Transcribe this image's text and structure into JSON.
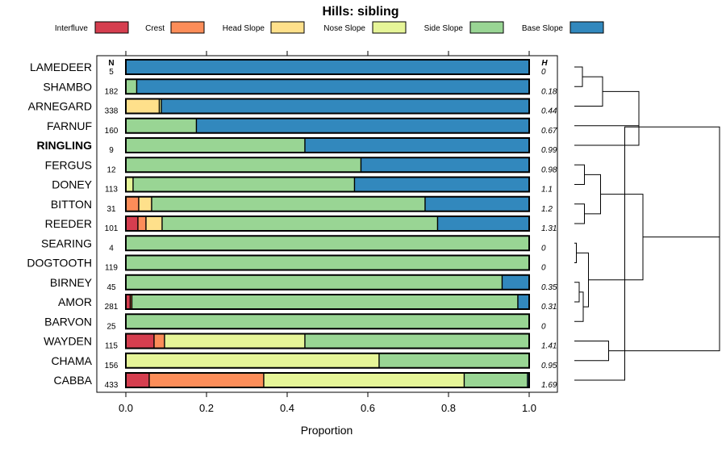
{
  "chart_data": {
    "type": "bar",
    "orientation": "horizontal",
    "stacked": true,
    "title": "Hills: sibling",
    "xlabel": "Proportion",
    "ylabel": "",
    "xlim": [
      0,
      1
    ],
    "xticks": [
      0.0,
      0.2,
      0.4,
      0.6,
      0.8,
      1.0
    ],
    "xtick_labels": [
      "0.0",
      "0.2",
      "0.4",
      "0.6",
      "0.8",
      "1.0"
    ],
    "n_header": "N",
    "h_header": "H",
    "legend": [
      {
        "name": "Interfluve",
        "color": "#D53E4F"
      },
      {
        "name": "Crest",
        "color": "#FC8D59"
      },
      {
        "name": "Head Slope",
        "color": "#FEE08B"
      },
      {
        "name": "Nose Slope",
        "color": "#E6F598"
      },
      {
        "name": "Side Slope",
        "color": "#99D594"
      },
      {
        "name": "Base Slope",
        "color": "#3288BD"
      }
    ],
    "rows": [
      {
        "name": "LAMEDEER",
        "n": "5",
        "h": "0",
        "bold": false,
        "values": [
          0,
          0,
          0,
          0,
          0,
          1.0
        ]
      },
      {
        "name": "SHAMBO",
        "n": "182",
        "h": "0.18",
        "bold": false,
        "values": [
          0,
          0,
          0,
          0,
          0.027,
          0.973
        ]
      },
      {
        "name": "ARNEGARD",
        "n": "338",
        "h": "0.44",
        "bold": false,
        "values": [
          0,
          0,
          0.083,
          0.005,
          0,
          0.912
        ]
      },
      {
        "name": "FARNUF",
        "n": "160",
        "h": "0.67",
        "bold": false,
        "values": [
          0,
          0,
          0,
          0,
          0.175,
          0.825
        ]
      },
      {
        "name": "RINGLING",
        "n": "9",
        "h": "0.99",
        "bold": true,
        "values": [
          0,
          0,
          0,
          0,
          0.444,
          0.556
        ]
      },
      {
        "name": "FERGUS",
        "n": "12",
        "h": "0.98",
        "bold": false,
        "values": [
          0,
          0,
          0,
          0,
          0.583,
          0.417
        ]
      },
      {
        "name": "DONEY",
        "n": "113",
        "h": "1.1",
        "bold": false,
        "values": [
          0,
          0,
          0,
          0.018,
          0.549,
          0.433
        ]
      },
      {
        "name": "BITTON",
        "n": "31",
        "h": "1.2",
        "bold": false,
        "values": [
          0,
          0.032,
          0.032,
          0,
          0.678,
          0.258
        ]
      },
      {
        "name": "REEDER",
        "n": "101",
        "h": "1.31",
        "bold": false,
        "values": [
          0.03,
          0.02,
          0.04,
          0,
          0.683,
          0.227
        ]
      },
      {
        "name": "SEARING",
        "n": "4",
        "h": "0",
        "bold": false,
        "values": [
          0,
          0,
          0,
          0,
          1.0,
          0
        ]
      },
      {
        "name": "DOGTOOTH",
        "n": "119",
        "h": "0",
        "bold": false,
        "values": [
          0,
          0,
          0,
          0,
          1.0,
          0
        ]
      },
      {
        "name": "BIRNEY",
        "n": "45",
        "h": "0.35",
        "bold": false,
        "values": [
          0,
          0,
          0,
          0,
          0.933,
          0.067
        ]
      },
      {
        "name": "AMOR",
        "n": "281",
        "h": "0.31",
        "bold": false,
        "values": [
          0.011,
          0.004,
          0,
          0,
          0.957,
          0.028
        ]
      },
      {
        "name": "BARVON",
        "n": "25",
        "h": "0",
        "bold": false,
        "values": [
          0,
          0,
          0,
          0,
          1.0,
          0
        ]
      },
      {
        "name": "WAYDEN",
        "n": "115",
        "h": "1.41",
        "bold": false,
        "values": [
          0.07,
          0.026,
          0,
          0.348,
          0.556,
          0
        ]
      },
      {
        "name": "CHAMA",
        "n": "156",
        "h": "0.95",
        "bold": false,
        "values": [
          0,
          0,
          0,
          0.628,
          0.372,
          0
        ]
      },
      {
        "name": "CABBA",
        "n": "433",
        "h": "1.69",
        "bold": false,
        "values": [
          0.058,
          0.284,
          0,
          0.497,
          0.157,
          0.004
        ]
      }
    ],
    "dendrogram": {
      "leaves": [
        "LAMEDEER",
        "SHAMBO",
        "ARNEGARD",
        "FARNUF",
        "RINGLING",
        "FERGUS",
        "DONEY",
        "BITTON",
        "REEDER",
        "SEARING",
        "DOGTOOTH",
        "BIRNEY",
        "AMOR",
        "BARVON",
        "WAYDEN",
        "CHAMA",
        "CABBA"
      ],
      "merges": [
        [
          0,
          1,
          0.02
        ],
        [
          17,
          2,
          0.07
        ],
        [
          18,
          3,
          0.16
        ],
        [
          5,
          6,
          0.025
        ],
        [
          7,
          8,
          0.025
        ],
        [
          20,
          21,
          0.065
        ],
        [
          9,
          10,
          0.005
        ],
        [
          11,
          12,
          0.012
        ],
        [
          24,
          13,
          0.022
        ],
        [
          23,
          25,
          0.035
        ],
        [
          22,
          26,
          0.17
        ],
        [
          19,
          4,
          0.16
        ],
        [
          14,
          15,
          0.085
        ],
        [
          28,
          16,
          0.125
        ],
        [
          27,
          28,
          0.36
        ],
        [
          29,
          31,
          0.36
        ]
      ]
    }
  }
}
